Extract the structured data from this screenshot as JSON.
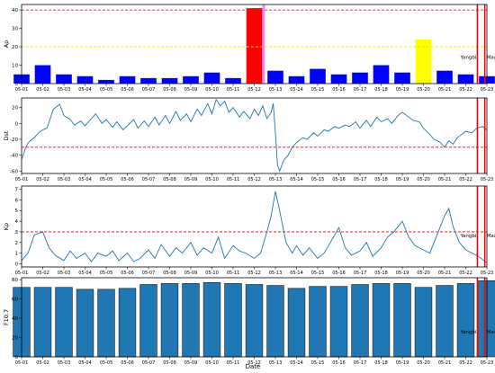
{
  "x_axis_label": "Date",
  "dates": [
    "05-01",
    "05-02",
    "05-03",
    "05-04",
    "05-05",
    "05-06",
    "05-07",
    "05-08",
    "05-09",
    "05-10",
    "05-11",
    "05-12",
    "05-13",
    "05-14",
    "05-15",
    "05-16",
    "05-17",
    "05-18",
    "05-19",
    "05-20",
    "05-21",
    "05-22",
    "05-23"
  ],
  "event_labels": [
    "Yangbi",
    "Maduo"
  ],
  "event_dates": [
    "05-21",
    "05-22"
  ],
  "colors": {
    "blue": "#0000ff",
    "red": "#ff0000",
    "yellow": "#ffff00",
    "steel": "#1f77b4",
    "dashed_red": "#ff0000",
    "dashed_yellow": "#e6e600",
    "magenta_bar": "#ee82ee"
  },
  "chart_data": [
    {
      "type": "bar",
      "ylabel": "Ap",
      "ylim": [
        0,
        43
      ],
      "yticks": [
        0,
        10,
        20,
        30,
        40
      ],
      "categories": [
        "05-01",
        "05-02",
        "05-03",
        "05-04",
        "05-05",
        "05-06",
        "05-07",
        "05-08",
        "05-09",
        "05-10",
        "05-11",
        "05-12",
        "05-13",
        "05-14",
        "05-15",
        "05-16",
        "05-17",
        "05-18",
        "05-19",
        "05-20",
        "05-21",
        "05-22",
        "05-23"
      ],
      "values": [
        5,
        10,
        5,
        4,
        2,
        4,
        3,
        3,
        4,
        6,
        3,
        41,
        7,
        4,
        8,
        5,
        6,
        10,
        6,
        24,
        7,
        5,
        4
      ],
      "bar_colors": [
        "blue",
        "blue",
        "blue",
        "blue",
        "blue",
        "blue",
        "blue",
        "blue",
        "blue",
        "blue",
        "blue",
        "red",
        "blue",
        "blue",
        "blue",
        "blue",
        "blue",
        "blue",
        "blue",
        "yellow",
        "blue",
        "blue",
        "blue"
      ],
      "threshold_lines": [
        {
          "value": 40,
          "color": "red"
        },
        {
          "value": 20,
          "color": "yellow"
        }
      ]
    },
    {
      "type": "line",
      "ylabel": "Dst",
      "ylim": [
        -63,
        32
      ],
      "yticks": [
        -60,
        -40,
        -20,
        0,
        20
      ],
      "threshold_lines": [
        {
          "value": -30,
          "color": "red"
        }
      ],
      "x": [
        0,
        0.1,
        0.2,
        0.3,
        0.4,
        0.5,
        0.6,
        0.7,
        0.8,
        0.9,
        1,
        1.2,
        1.5,
        1.8,
        2,
        2.3,
        2.5,
        2.8,
        3,
        3.3,
        3.5,
        3.8,
        4,
        4.3,
        4.5,
        4.8,
        5,
        5.3,
        5.5,
        5.8,
        6,
        6.3,
        6.5,
        6.8,
        7,
        7.3,
        7.5,
        7.8,
        8,
        8.3,
        8.5,
        8.8,
        9,
        9.2,
        9.4,
        9.6,
        9.8,
        10,
        10.3,
        10.5,
        10.8,
        11,
        11.2,
        11.4,
        11.6,
        11.8,
        11.9,
        12,
        12.1,
        12.2,
        12.4,
        12.6,
        12.8,
        13,
        13.3,
        13.5,
        13.8,
        14,
        14.3,
        14.5,
        14.8,
        15,
        15.3,
        15.5,
        15.8,
        16,
        16.3,
        16.5,
        16.8,
        17,
        17.3,
        17.5,
        17.8,
        18,
        18.3,
        18.5,
        18.8,
        19,
        19.3,
        19.5,
        19.8,
        20,
        20.2,
        20.4,
        20.6,
        20.8,
        21,
        21.3,
        21.5,
        21.8,
        22
      ],
      "y": [
        -45,
        -38,
        -30,
        -25,
        -22,
        -20,
        -18,
        -15,
        -12,
        -10,
        -8,
        -6,
        18,
        24,
        10,
        5,
        -2,
        3,
        -3,
        6,
        12,
        0,
        5,
        -5,
        2,
        -8,
        -3,
        5,
        -6,
        3,
        -4,
        8,
        -2,
        10,
        0,
        15,
        4,
        12,
        2,
        18,
        10,
        25,
        12,
        30,
        22,
        28,
        14,
        20,
        8,
        15,
        6,
        18,
        10,
        22,
        6,
        14,
        25,
        -12,
        -52,
        -60,
        -46,
        -40,
        -30,
        -24,
        -18,
        -20,
        -12,
        -16,
        -8,
        -10,
        -4,
        -6,
        -2,
        -4,
        2,
        -6,
        4,
        -4,
        8,
        2,
        6,
        0,
        10,
        14,
        8,
        4,
        2,
        -6,
        -14,
        -20,
        -24,
        -30,
        -22,
        -26,
        -18,
        -14,
        -10,
        -12,
        -6,
        -4,
        -8
      ]
    },
    {
      "type": "line",
      "ylabel": "Kp",
      "ylim": [
        -0.3,
        7.3
      ],
      "yticks": [
        0,
        1,
        2,
        3,
        4,
        5,
        6,
        7
      ],
      "threshold_lines": [
        {
          "value": 3,
          "color": "red"
        }
      ],
      "x": [
        0,
        0.3,
        0.6,
        1,
        1.3,
        1.6,
        2,
        2.3,
        2.6,
        3,
        3.3,
        3.6,
        4,
        4.3,
        4.6,
        5,
        5.3,
        5.6,
        6,
        6.3,
        6.6,
        7,
        7.3,
        7.6,
        8,
        8.3,
        8.6,
        9,
        9.3,
        9.6,
        10,
        10.3,
        10.6,
        11,
        11.3,
        11.6,
        11.8,
        12,
        12.2,
        12.5,
        12.8,
        13,
        13.3,
        13.6,
        14,
        14.3,
        14.6,
        15,
        15.3,
        15.6,
        16,
        16.3,
        16.6,
        17,
        17.3,
        17.6,
        18,
        18.3,
        18.6,
        19,
        19.3,
        19.6,
        20,
        20.2,
        20.4,
        20.7,
        21,
        21.3,
        21.6,
        22
      ],
      "y": [
        0.3,
        1.0,
        2.7,
        3.0,
        1.5,
        0.8,
        0.3,
        1.2,
        0.5,
        1.0,
        0.2,
        1.0,
        0.7,
        1.2,
        0.3,
        1.0,
        0.2,
        0.5,
        1.3,
        0.5,
        1.8,
        0.7,
        1.5,
        1.0,
        2.0,
        0.8,
        1.5,
        1.0,
        2.5,
        0.5,
        1.7,
        1.2,
        1.0,
        0.5,
        1.0,
        3.0,
        4.5,
        6.8,
        5.0,
        2.0,
        1.0,
        1.7,
        0.8,
        1.5,
        0.5,
        1.0,
        2.0,
        3.4,
        1.5,
        0.8,
        1.2,
        2.0,
        0.7,
        1.5,
        2.5,
        3.0,
        4.0,
        2.5,
        1.7,
        1.3,
        1.0,
        2.5,
        4.5,
        5.2,
        3.5,
        2.0,
        1.3,
        1.0,
        0.7,
        0.1
      ]
    },
    {
      "type": "bar",
      "ylabel": "F10.7",
      "ylim": [
        0,
        82
      ],
      "yticks": [
        0,
        20,
        40,
        60,
        80
      ],
      "categories": [
        "05-01",
        "05-02",
        "05-03",
        "05-04",
        "05-05",
        "05-06",
        "05-07",
        "05-08",
        "05-09",
        "05-10",
        "05-11",
        "05-12",
        "05-13",
        "05-14",
        "05-15",
        "05-16",
        "05-17",
        "05-18",
        "05-19",
        "05-20",
        "05-21",
        "05-22",
        "05-23"
      ],
      "values": [
        72,
        72,
        72,
        70,
        70,
        71,
        75,
        76,
        76,
        77,
        76,
        75,
        74,
        71,
        73,
        73,
        75,
        76,
        76,
        72,
        74,
        76,
        79
      ]
    }
  ]
}
